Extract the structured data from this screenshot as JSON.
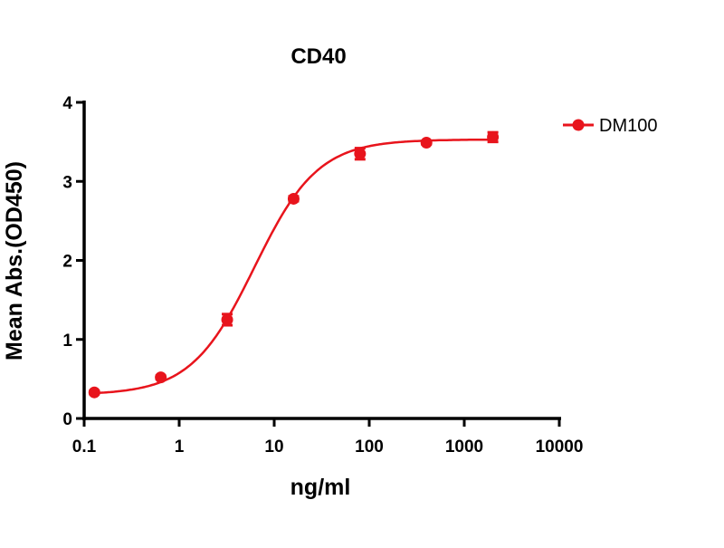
{
  "chart_data": {
    "type": "scatter",
    "title": "CD40",
    "xlabel": "ng/ml",
    "ylabel": "Mean Abs.(OD450)",
    "xscale": "log",
    "xlim": [
      0.1,
      10000
    ],
    "ylim": [
      0,
      4
    ],
    "xticks": [
      "0.1",
      "1",
      "10",
      "100",
      "1000",
      "10000"
    ],
    "xtick_values": [
      0.1,
      1,
      10,
      100,
      1000,
      10000
    ],
    "yticks": [
      "0",
      "1",
      "2",
      "3",
      "4"
    ],
    "ytick_values": [
      0,
      1,
      2,
      3,
      4
    ],
    "grid": false,
    "legend_position": "top-right",
    "color": "#e8141c",
    "series": [
      {
        "name": "DM100",
        "x": [
          0.128,
          0.64,
          3.2,
          16,
          80,
          400,
          2000
        ],
        "y": [
          0.33,
          0.52,
          1.25,
          2.78,
          3.35,
          3.49,
          3.56
        ],
        "error": [
          0.02,
          0.02,
          0.07,
          0.03,
          0.07,
          0.02,
          0.06
        ],
        "fit": {
          "model": "4PL",
          "bottom": 0.3,
          "top": 3.53,
          "ec50": 6.2,
          "hill": 1.3
        }
      }
    ]
  }
}
